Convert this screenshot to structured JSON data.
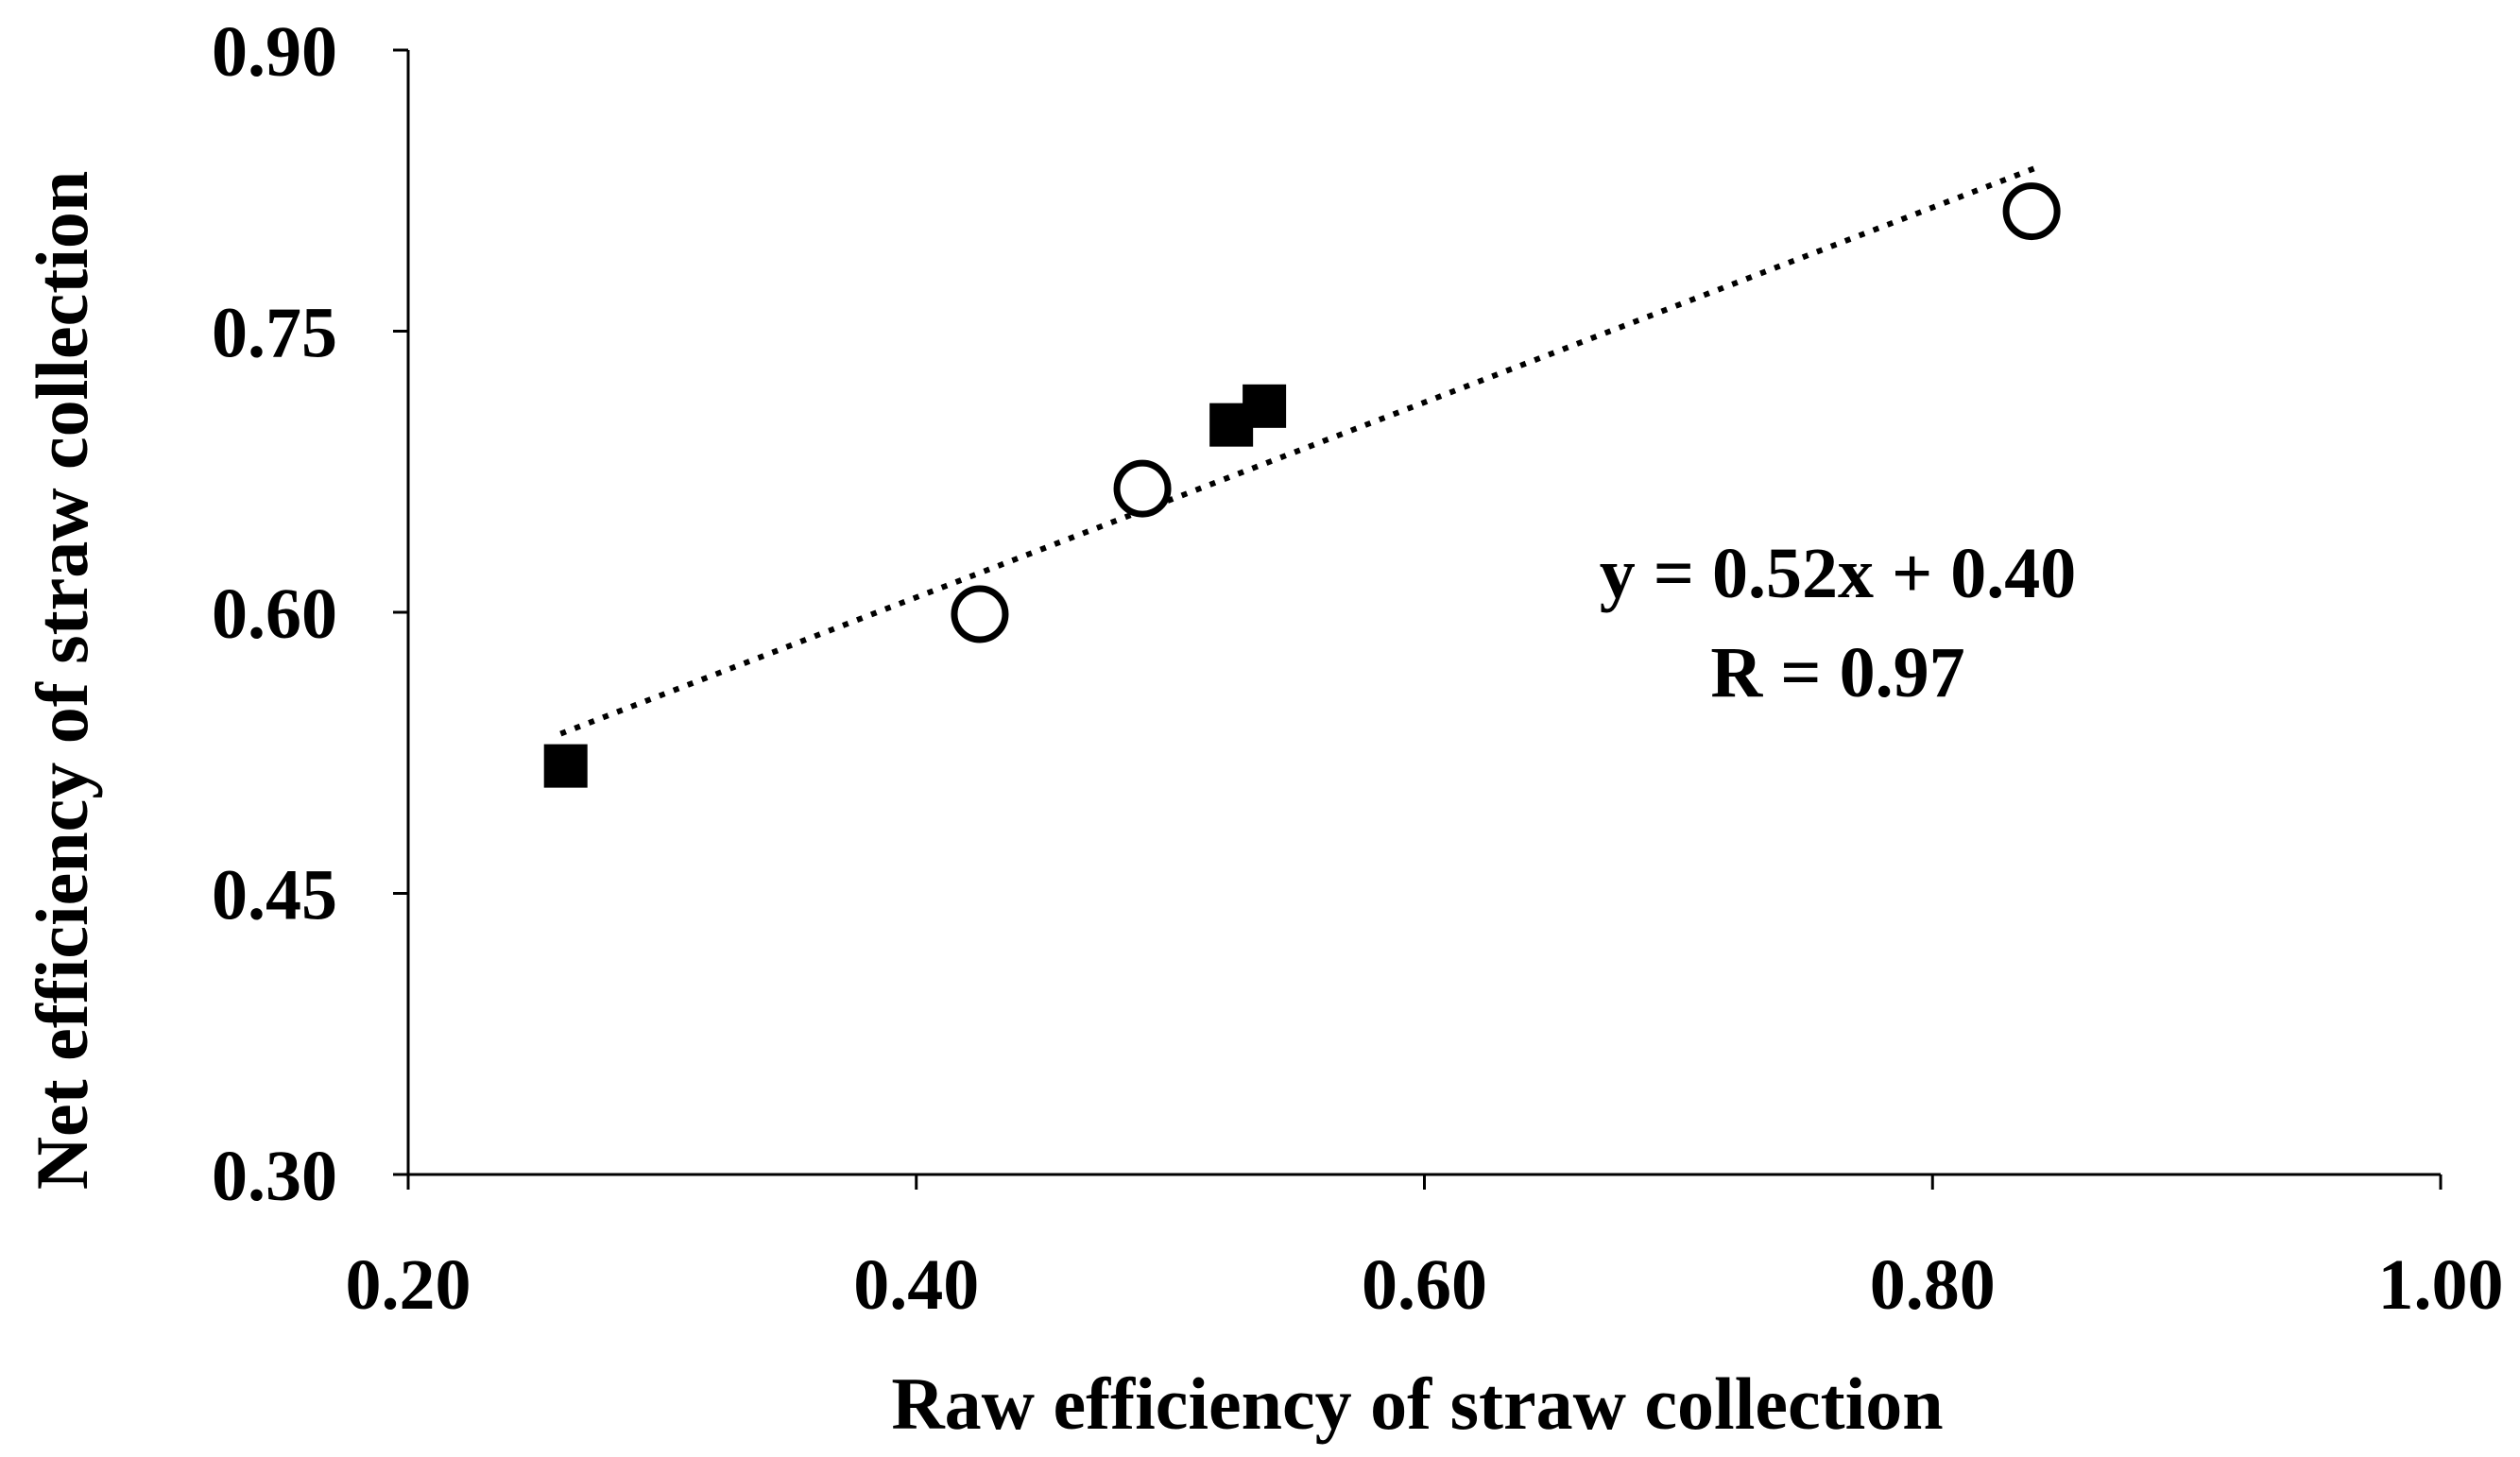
{
  "chart_data": {
    "type": "scatter",
    "title": "",
    "xlabel": "Raw efficiency of straw collection",
    "ylabel": "Net efficiency of straw collection",
    "xlim": [
      0.2,
      1.0
    ],
    "ylim": [
      0.3,
      0.9
    ],
    "xticks": [
      0.2,
      0.4,
      0.6,
      0.8,
      1.0
    ],
    "yticks": [
      0.3,
      0.45,
      0.6,
      0.75,
      0.9
    ],
    "xtick_labels": [
      "0.20",
      "0.40",
      "0.60",
      "0.80",
      "1.00"
    ],
    "ytick_labels": [
      "0.30",
      "0.45",
      "0.60",
      "0.75",
      "0.90"
    ],
    "grid": false,
    "series": [
      {
        "name": "filled squares",
        "marker": "square-filled",
        "points": [
          {
            "x": 0.262,
            "y": 0.518
          },
          {
            "x": 0.524,
            "y": 0.7
          },
          {
            "x": 0.537,
            "y": 0.71
          }
        ]
      },
      {
        "name": "open circles",
        "marker": "circle-open",
        "points": [
          {
            "x": 0.425,
            "y": 0.599
          },
          {
            "x": 0.489,
            "y": 0.666
          },
          {
            "x": 0.839,
            "y": 0.814
          }
        ]
      }
    ],
    "trendline": {
      "type": "linear",
      "style": "dotted",
      "slope": 0.52,
      "intercept": 0.4,
      "x_range": [
        0.26,
        0.84
      ]
    },
    "annotations": {
      "equation": "y = 0.52x + 0.40",
      "r_value": "R = 0.97"
    }
  },
  "colors": {
    "axis": "#000000",
    "marker": "#000000",
    "background": "#ffffff"
  }
}
